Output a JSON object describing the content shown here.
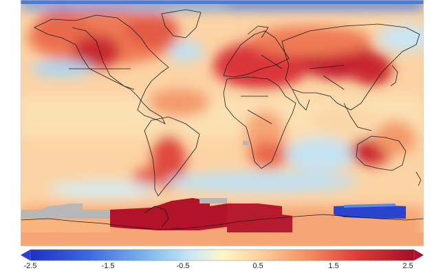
{
  "colorbar": {
    "ticks": [
      "-2.5",
      "-1.5",
      "-0.5",
      "0.5",
      "1.5",
      "2.5"
    ],
    "colors": {
      "min": "#2a3fd0",
      "cold": "#5d8be6",
      "cool": "#a9d6f2",
      "neutral": "#fff6c8",
      "warm": "#f9b47d",
      "hot": "#e0453a",
      "max": "#b1102a"
    }
  },
  "map": {
    "missing_color": "#b7b7b7",
    "coastline_color": "#1a1a1a"
  }
}
